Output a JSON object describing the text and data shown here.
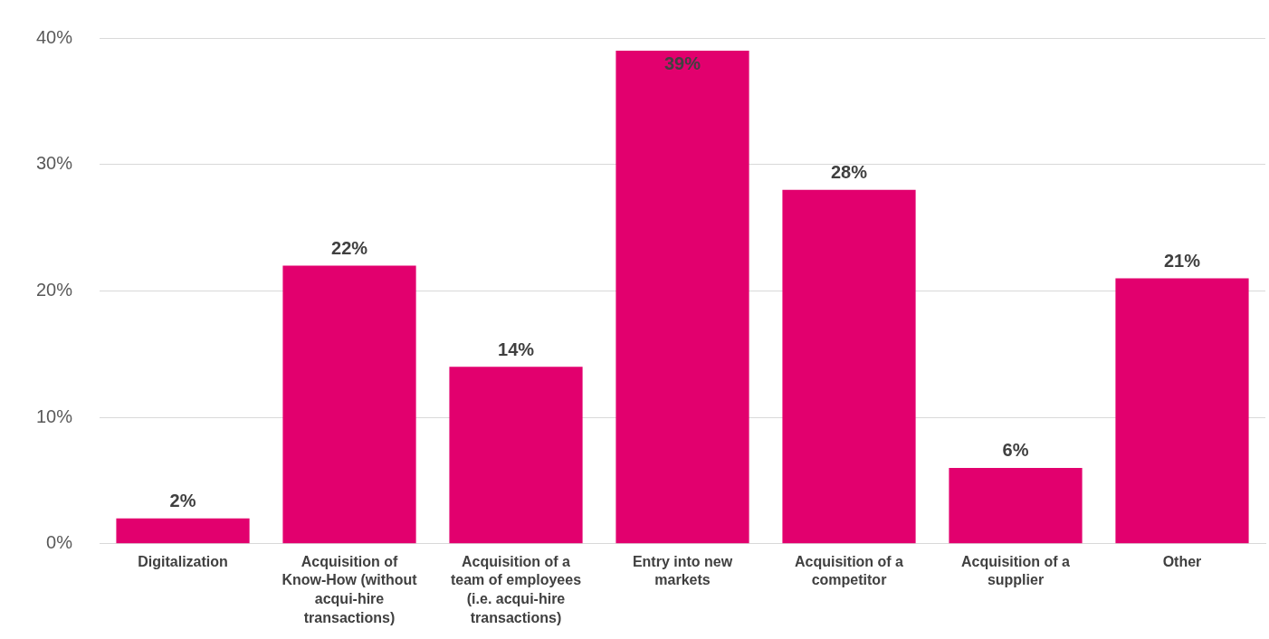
{
  "chart_data": {
    "type": "bar",
    "categories": [
      "Digitalization",
      "Acquisition of Know-How (without acqui-hire transactions)",
      "Acquisition of a team of employees (i.e. acqui-hire transactions)",
      "Entry into new markets",
      "Acquisition of a competitor",
      "Acquisition of a supplier",
      "Other"
    ],
    "values": [
      2,
      22,
      14,
      39,
      28,
      6,
      21
    ],
    "value_labels": [
      "2%",
      "22%",
      "14%",
      "39%",
      "28%",
      "6%",
      "21%"
    ],
    "color": "#e2006e",
    "ylim": [
      0,
      40
    ],
    "yticks": [
      {
        "value": 0,
        "label": "0%"
      },
      {
        "value": 10,
        "label": "10%"
      },
      {
        "value": 20,
        "label": "20%"
      },
      {
        "value": 30,
        "label": "30%"
      },
      {
        "value": 40,
        "label": "40%"
      }
    ],
    "grid": "y",
    "legend": false
  }
}
